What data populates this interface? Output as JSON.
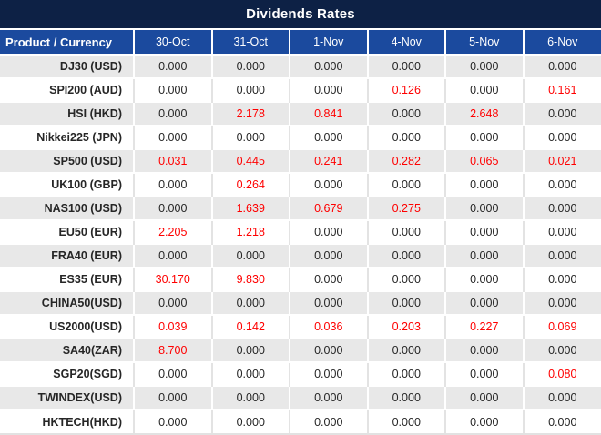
{
  "title": "Dividends Rates",
  "colors": {
    "title_bg": "#0D2145",
    "header_bg": "#1B4A9E",
    "stripe_bg": "#E8E8E8",
    "value_text": "#262626",
    "highlight_text": "#FF0000"
  },
  "table": {
    "header": [
      "Product / Currency",
      "30-Oct",
      "31-Oct",
      "1-Nov",
      "4-Nov",
      "5-Nov",
      "6-Nov"
    ],
    "rows": [
      {
        "product": "DJ30 (USD)",
        "values": [
          {
            "value": "0.000",
            "red": false
          },
          {
            "value": "0.000",
            "red": false
          },
          {
            "value": "0.000",
            "red": false
          },
          {
            "value": "0.000",
            "red": false
          },
          {
            "value": "0.000",
            "red": false
          },
          {
            "value": "0.000",
            "red": false
          }
        ]
      },
      {
        "product": "SPI200 (AUD)",
        "values": [
          {
            "value": "0.000",
            "red": false
          },
          {
            "value": "0.000",
            "red": false
          },
          {
            "value": "0.000",
            "red": false
          },
          {
            "value": "0.126",
            "red": true
          },
          {
            "value": "0.000",
            "red": false
          },
          {
            "value": "0.161",
            "red": true
          }
        ]
      },
      {
        "product": "HSI (HKD)",
        "values": [
          {
            "value": "0.000",
            "red": false
          },
          {
            "value": "2.178",
            "red": true
          },
          {
            "value": "0.841",
            "red": true
          },
          {
            "value": "0.000",
            "red": false
          },
          {
            "value": "2.648",
            "red": true
          },
          {
            "value": "0.000",
            "red": false
          }
        ]
      },
      {
        "product": "Nikkei225 (JPN)",
        "values": [
          {
            "value": "0.000",
            "red": false
          },
          {
            "value": "0.000",
            "red": false
          },
          {
            "value": "0.000",
            "red": false
          },
          {
            "value": "0.000",
            "red": false
          },
          {
            "value": "0.000",
            "red": false
          },
          {
            "value": "0.000",
            "red": false
          }
        ]
      },
      {
        "product": "SP500 (USD)",
        "values": [
          {
            "value": "0.031",
            "red": true
          },
          {
            "value": "0.445",
            "red": true
          },
          {
            "value": "0.241",
            "red": true
          },
          {
            "value": "0.282",
            "red": true
          },
          {
            "value": "0.065",
            "red": true
          },
          {
            "value": "0.021",
            "red": true
          }
        ]
      },
      {
        "product": "UK100 (GBP)",
        "values": [
          {
            "value": "0.000",
            "red": false
          },
          {
            "value": "0.264",
            "red": true
          },
          {
            "value": "0.000",
            "red": false
          },
          {
            "value": "0.000",
            "red": false
          },
          {
            "value": "0.000",
            "red": false
          },
          {
            "value": "0.000",
            "red": false
          }
        ]
      },
      {
        "product": "NAS100 (USD)",
        "values": [
          {
            "value": "0.000",
            "red": false
          },
          {
            "value": "1.639",
            "red": true
          },
          {
            "value": "0.679",
            "red": true
          },
          {
            "value": "0.275",
            "red": true
          },
          {
            "value": "0.000",
            "red": false
          },
          {
            "value": "0.000",
            "red": false
          }
        ]
      },
      {
        "product": "EU50 (EUR)",
        "values": [
          {
            "value": "2.205",
            "red": true
          },
          {
            "value": "1.218",
            "red": true
          },
          {
            "value": "0.000",
            "red": false
          },
          {
            "value": "0.000",
            "red": false
          },
          {
            "value": "0.000",
            "red": false
          },
          {
            "value": "0.000",
            "red": false
          }
        ]
      },
      {
        "product": "FRA40 (EUR)",
        "values": [
          {
            "value": "0.000",
            "red": false
          },
          {
            "value": "0.000",
            "red": false
          },
          {
            "value": "0.000",
            "red": false
          },
          {
            "value": "0.000",
            "red": false
          },
          {
            "value": "0.000",
            "red": false
          },
          {
            "value": "0.000",
            "red": false
          }
        ]
      },
      {
        "product": "ES35 (EUR)",
        "values": [
          {
            "value": "30.170",
            "red": true
          },
          {
            "value": "9.830",
            "red": true
          },
          {
            "value": "0.000",
            "red": false
          },
          {
            "value": "0.000",
            "red": false
          },
          {
            "value": "0.000",
            "red": false
          },
          {
            "value": "0.000",
            "red": false
          }
        ]
      },
      {
        "product": "CHINA50(USD)",
        "values": [
          {
            "value": "0.000",
            "red": false
          },
          {
            "value": "0.000",
            "red": false
          },
          {
            "value": "0.000",
            "red": false
          },
          {
            "value": "0.000",
            "red": false
          },
          {
            "value": "0.000",
            "red": false
          },
          {
            "value": "0.000",
            "red": false
          }
        ]
      },
      {
        "product": "US2000(USD)",
        "values": [
          {
            "value": "0.039",
            "red": true
          },
          {
            "value": "0.142",
            "red": true
          },
          {
            "value": "0.036",
            "red": true
          },
          {
            "value": "0.203",
            "red": true
          },
          {
            "value": "0.227",
            "red": true
          },
          {
            "value": "0.069",
            "red": true
          }
        ]
      },
      {
        "product": "SA40(ZAR)",
        "values": [
          {
            "value": "8.700",
            "red": true
          },
          {
            "value": "0.000",
            "red": false
          },
          {
            "value": "0.000",
            "red": false
          },
          {
            "value": "0.000",
            "red": false
          },
          {
            "value": "0.000",
            "red": false
          },
          {
            "value": "0.000",
            "red": false
          }
        ]
      },
      {
        "product": "SGP20(SGD)",
        "values": [
          {
            "value": "0.000",
            "red": false
          },
          {
            "value": "0.000",
            "red": false
          },
          {
            "value": "0.000",
            "red": false
          },
          {
            "value": "0.000",
            "red": false
          },
          {
            "value": "0.000",
            "red": false
          },
          {
            "value": "0.080",
            "red": true
          }
        ]
      },
      {
        "product": "TWINDEX(USD)",
        "values": [
          {
            "value": "0.000",
            "red": false
          },
          {
            "value": "0.000",
            "red": false
          },
          {
            "value": "0.000",
            "red": false
          },
          {
            "value": "0.000",
            "red": false
          },
          {
            "value": "0.000",
            "red": false
          },
          {
            "value": "0.000",
            "red": false
          }
        ]
      },
      {
        "product": "HKTECH(HKD)",
        "values": [
          {
            "value": "0.000",
            "red": false
          },
          {
            "value": "0.000",
            "red": false
          },
          {
            "value": "0.000",
            "red": false
          },
          {
            "value": "0.000",
            "red": false
          },
          {
            "value": "0.000",
            "red": false
          },
          {
            "value": "0.000",
            "red": false
          }
        ]
      }
    ]
  }
}
